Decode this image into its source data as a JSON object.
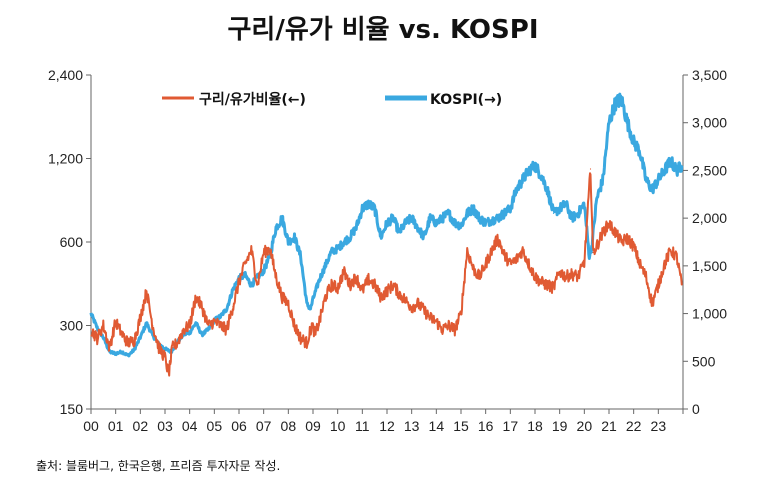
{
  "chart_data": {
    "type": "line",
    "title": "구리/유가 비율 vs. KOSPI",
    "source_note": "출처: 블룸버그, 한국은행, 프리즘 투자자문 작성.",
    "x_ticks": [
      "00",
      "01",
      "02",
      "03",
      "04",
      "05",
      "06",
      "07",
      "08",
      "09",
      "10",
      "11",
      "12",
      "13",
      "14",
      "15",
      "16",
      "17",
      "18",
      "19",
      "20",
      "21",
      "22",
      "23"
    ],
    "x_range": [
      2000.0,
      2024.0
    ],
    "left_axis": {
      "scale": "log",
      "range": [
        150,
        2400
      ],
      "ticks": [
        150,
        300,
        600,
        1200,
        2400
      ],
      "tick_labels": [
        "150",
        "300",
        "600",
        "1,200",
        "2,400"
      ]
    },
    "right_axis": {
      "scale": "linear",
      "range": [
        0,
        3500
      ],
      "ticks": [
        0,
        500,
        1000,
        1500,
        2000,
        2500,
        3000,
        3500
      ],
      "tick_labels": [
        "0",
        "500",
        "1,000",
        "1,500",
        "2,000",
        "2,500",
        "3,000",
        "3,500"
      ]
    },
    "series": [
      {
        "name": "구리/유가비율(←)",
        "axis": "left",
        "color": "#E05A33",
        "x": [
          2000.0,
          2000.25,
          2000.5,
          2000.75,
          2001.0,
          2001.25,
          2001.5,
          2001.75,
          2002.0,
          2002.25,
          2002.5,
          2002.75,
          2003.0,
          2003.15,
          2003.3,
          2003.5,
          2003.75,
          2004.0,
          2004.25,
          2004.5,
          2004.75,
          2005.0,
          2005.25,
          2005.5,
          2005.75,
          2006.0,
          2006.25,
          2006.5,
          2006.75,
          2007.0,
          2007.25,
          2007.5,
          2007.75,
          2008.0,
          2008.25,
          2008.5,
          2008.75,
          2008.95,
          2009.1,
          2009.3,
          2009.5,
          2009.75,
          2010.0,
          2010.25,
          2010.5,
          2010.75,
          2011.0,
          2011.25,
          2011.5,
          2011.75,
          2012.0,
          2012.25,
          2012.5,
          2012.75,
          2013.0,
          2013.25,
          2013.5,
          2013.75,
          2014.0,
          2014.25,
          2014.5,
          2014.75,
          2015.0,
          2015.25,
          2015.5,
          2015.75,
          2016.0,
          2016.25,
          2016.5,
          2016.75,
          2017.0,
          2017.25,
          2017.5,
          2017.75,
          2018.0,
          2018.25,
          2018.5,
          2018.75,
          2019.0,
          2019.25,
          2019.5,
          2019.75,
          2020.0,
          2020.15,
          2020.25,
          2020.35,
          2020.5,
          2020.75,
          2021.0,
          2021.25,
          2021.5,
          2021.75,
          2022.0,
          2022.25,
          2022.5,
          2022.75,
          2023.0,
          2023.25,
          2023.5,
          2023.75,
          2023.95
        ],
        "values": [
          290,
          270,
          300,
          250,
          310,
          280,
          260,
          265,
          320,
          400,
          300,
          250,
          230,
          200,
          250,
          260,
          290,
          300,
          380,
          350,
          300,
          310,
          300,
          290,
          350,
          430,
          500,
          560,
          420,
          550,
          570,
          450,
          380,
          360,
          300,
          270,
          260,
          300,
          280,
          320,
          380,
          420,
          410,
          470,
          420,
          450,
          400,
          440,
          420,
          380,
          400,
          420,
          390,
          370,
          350,
          360,
          340,
          320,
          310,
          290,
          300,
          290,
          330,
          560,
          480,
          450,
          500,
          560,
          620,
          540,
          500,
          520,
          560,
          500,
          450,
          430,
          420,
          410,
          470,
          450,
          460,
          450,
          510,
          800,
          1100,
          550,
          580,
          650,
          700,
          650,
          600,
          620,
          580,
          500,
          450,
          360,
          420,
          500,
          560,
          530,
          420
        ]
      },
      {
        "name": "KOSPI(→)",
        "axis": "right",
        "color": "#3AA8E0",
        "x": [
          2000.0,
          2000.25,
          2000.5,
          2000.75,
          2001.0,
          2001.25,
          2001.5,
          2001.75,
          2002.0,
          2002.25,
          2002.5,
          2002.75,
          2003.0,
          2003.25,
          2003.5,
          2003.75,
          2004.0,
          2004.25,
          2004.5,
          2004.75,
          2005.0,
          2005.25,
          2005.5,
          2005.75,
          2006.0,
          2006.25,
          2006.5,
          2006.75,
          2007.0,
          2007.25,
          2007.5,
          2007.75,
          2008.0,
          2008.25,
          2008.5,
          2008.75,
          2008.9,
          2009.0,
          2009.25,
          2009.5,
          2009.75,
          2010.0,
          2010.25,
          2010.5,
          2010.75,
          2011.0,
          2011.25,
          2011.5,
          2011.75,
          2012.0,
          2012.25,
          2012.5,
          2012.75,
          2013.0,
          2013.25,
          2013.5,
          2013.75,
          2014.0,
          2014.25,
          2014.5,
          2014.75,
          2015.0,
          2015.25,
          2015.5,
          2015.75,
          2016.0,
          2016.25,
          2016.5,
          2016.75,
          2017.0,
          2017.25,
          2017.5,
          2017.75,
          2018.0,
          2018.25,
          2018.5,
          2018.75,
          2019.0,
          2019.25,
          2019.5,
          2019.75,
          2020.0,
          2020.2,
          2020.3,
          2020.5,
          2020.75,
          2021.0,
          2021.25,
          2021.5,
          2021.75,
          2022.0,
          2022.25,
          2022.5,
          2022.75,
          2023.0,
          2023.25,
          2023.5,
          2023.75,
          2023.95
        ],
        "values": [
          1000,
          850,
          750,
          600,
          580,
          600,
          560,
          620,
          750,
          900,
          770,
          680,
          630,
          600,
          700,
          780,
          800,
          900,
          780,
          830,
          930,
          970,
          1050,
          1250,
          1370,
          1400,
          1300,
          1380,
          1450,
          1600,
          1900,
          2000,
          1750,
          1800,
          1600,
          1100,
          1050,
          1150,
          1350,
          1500,
          1650,
          1680,
          1750,
          1800,
          1900,
          2100,
          2150,
          2100,
          1800,
          1950,
          2000,
          1850,
          1950,
          2000,
          1900,
          1800,
          2000,
          1950,
          2000,
          2050,
          1950,
          1920,
          2050,
          2100,
          2000,
          1950,
          1980,
          2000,
          2050,
          2100,
          2300,
          2400,
          2500,
          2550,
          2450,
          2300,
          2050,
          2100,
          2150,
          2000,
          2050,
          2150,
          1600,
          1700,
          2200,
          2400,
          3000,
          3200,
          3250,
          3000,
          2800,
          2700,
          2400,
          2300,
          2400,
          2500,
          2600,
          2500,
          2550
        ]
      }
    ]
  }
}
